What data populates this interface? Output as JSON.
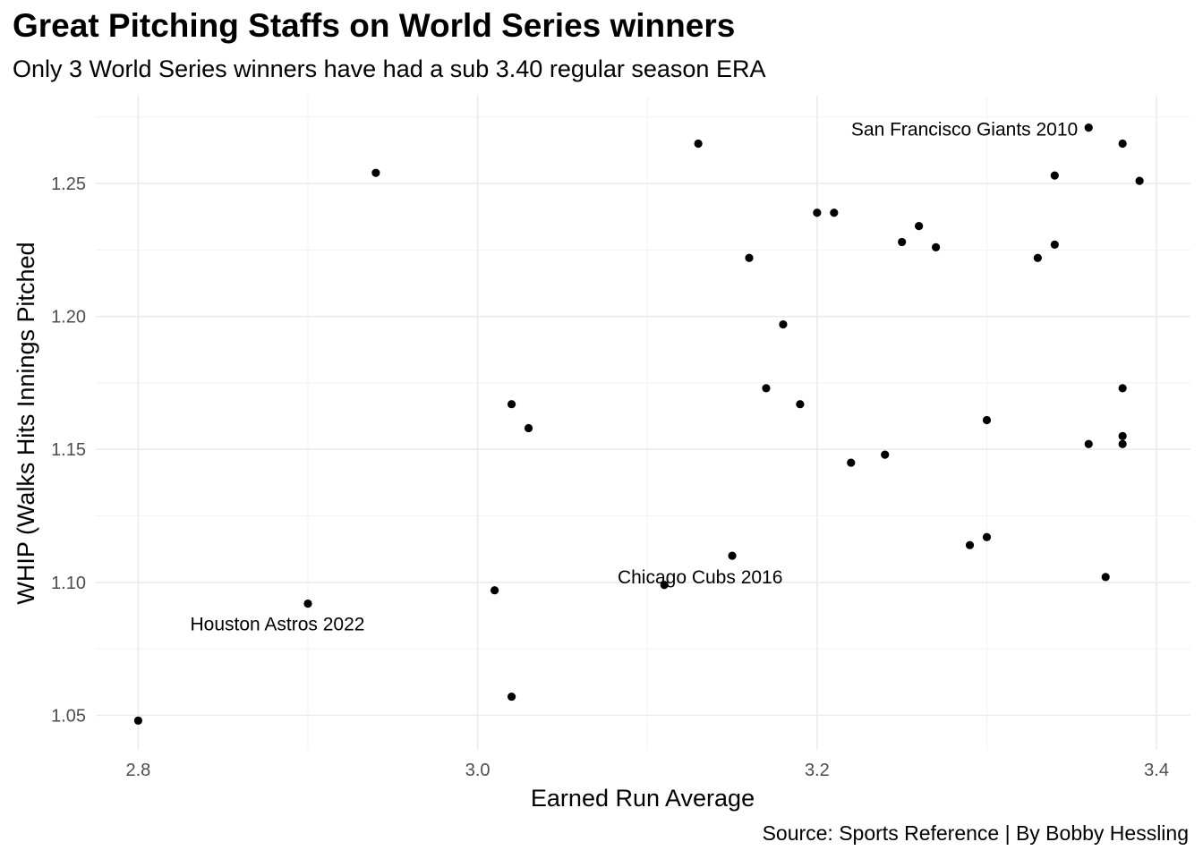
{
  "chart_data": {
    "type": "scatter",
    "title": "Great Pitching Staffs on World Series winners",
    "subtitle": "Only 3 World Series winners have had a sub 3.40 regular season ERA",
    "caption": "Source: Sports Reference | By Bobby Hessling",
    "xlabel": "Earned Run Average",
    "ylabel": "WHIP (Walks Hits Innings Pitched",
    "xlim": [
      2.775,
      3.42
    ],
    "ylim": [
      1.037,
      1.283
    ],
    "x_ticks": [
      "2.8",
      "3.0",
      "3.2",
      "3.4"
    ],
    "y_ticks": [
      "1.05",
      "1.10",
      "1.15",
      "1.20",
      "1.25"
    ],
    "grid": true,
    "legend": "none",
    "points": [
      {
        "x": 2.8,
        "y": 1.048
      },
      {
        "x": 2.9,
        "y": 1.092,
        "label": "Houston Astros 2022"
      },
      {
        "x": 2.94,
        "y": 1.254
      },
      {
        "x": 3.01,
        "y": 1.097
      },
      {
        "x": 3.02,
        "y": 1.057
      },
      {
        "x": 3.02,
        "y": 1.167
      },
      {
        "x": 3.03,
        "y": 1.158
      },
      {
        "x": 3.11,
        "y": 1.099,
        "label": "Chicago Cubs 2016"
      },
      {
        "x": 3.13,
        "y": 1.265
      },
      {
        "x": 3.15,
        "y": 1.11
      },
      {
        "x": 3.16,
        "y": 1.222
      },
      {
        "x": 3.17,
        "y": 1.173
      },
      {
        "x": 3.18,
        "y": 1.197
      },
      {
        "x": 3.19,
        "y": 1.167
      },
      {
        "x": 3.2,
        "y": 1.239
      },
      {
        "x": 3.21,
        "y": 1.239
      },
      {
        "x": 3.22,
        "y": 1.145
      },
      {
        "x": 3.24,
        "y": 1.148
      },
      {
        "x": 3.25,
        "y": 1.228
      },
      {
        "x": 3.26,
        "y": 1.234
      },
      {
        "x": 3.27,
        "y": 1.226
      },
      {
        "x": 3.29,
        "y": 1.114
      },
      {
        "x": 3.3,
        "y": 1.117
      },
      {
        "x": 3.3,
        "y": 1.161
      },
      {
        "x": 3.33,
        "y": 1.222
      },
      {
        "x": 3.34,
        "y": 1.227
      },
      {
        "x": 3.34,
        "y": 1.253
      },
      {
        "x": 3.36,
        "y": 1.271,
        "label": "San Francisco Giants 2010"
      },
      {
        "x": 3.36,
        "y": 1.152
      },
      {
        "x": 3.37,
        "y": 1.102
      },
      {
        "x": 3.38,
        "y": 1.265
      },
      {
        "x": 3.38,
        "y": 1.173
      },
      {
        "x": 3.38,
        "y": 1.155
      },
      {
        "x": 3.38,
        "y": 1.152
      },
      {
        "x": 3.39,
        "y": 1.251
      }
    ]
  }
}
